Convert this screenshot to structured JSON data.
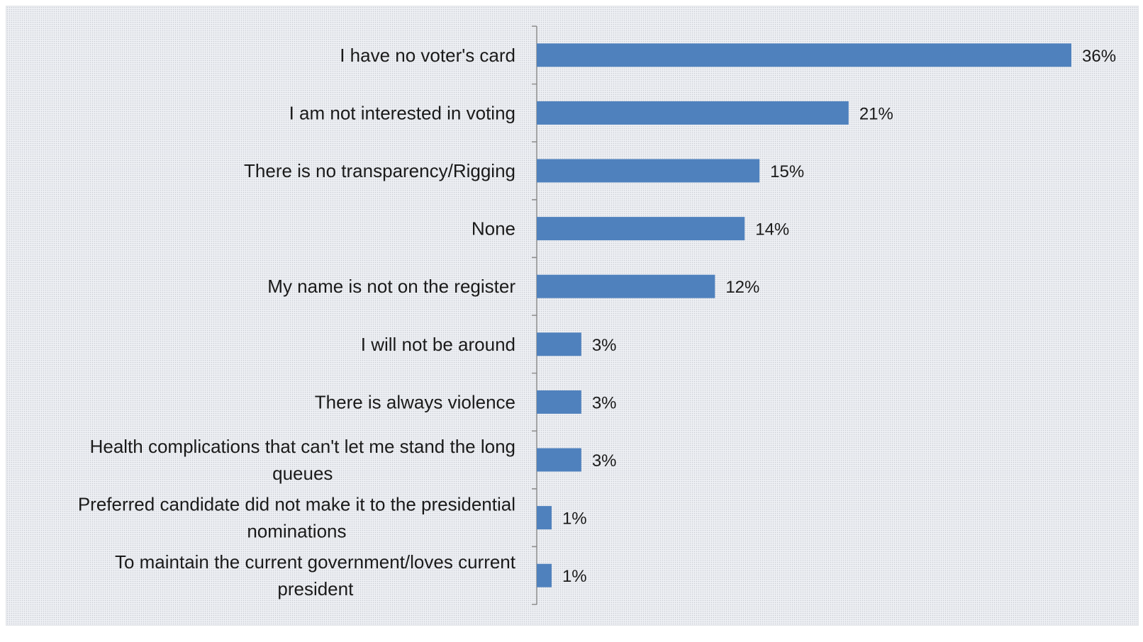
{
  "chart_data": {
    "type": "bar",
    "orientation": "horizontal",
    "categories": [
      [
        "I have no voter's card"
      ],
      [
        "I am not interested in voting"
      ],
      [
        "There is no transparency/Rigging"
      ],
      [
        "None"
      ],
      [
        "My name is not on the register"
      ],
      [
        "I will not be around"
      ],
      [
        "There is always violence"
      ],
      [
        "Health complications that can't let me stand the long",
        "queues"
      ],
      [
        "Preferred candidate did not make it to the presidential",
        "nominations"
      ],
      [
        "To maintain the current government/loves current",
        "president"
      ]
    ],
    "values": [
      36,
      21,
      15,
      14,
      12,
      3,
      3,
      3,
      1,
      1
    ],
    "value_labels": [
      "36%",
      "21%",
      "15%",
      "14%",
      "12%",
      "3%",
      "3%",
      "3%",
      "1%",
      "1%"
    ],
    "xlim": [
      0,
      36
    ],
    "bar_color": "#4f81bd",
    "grid": false,
    "legend": "none",
    "title": "",
    "xlabel": "",
    "ylabel": ""
  }
}
